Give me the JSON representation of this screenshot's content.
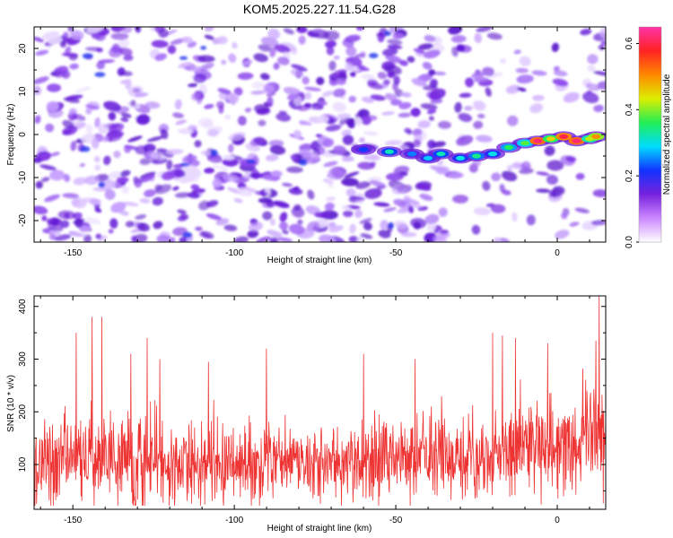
{
  "title": "KOM5.2025.227.11.54.G28",
  "chart_data": [
    {
      "type": "heatmap",
      "name": "spectrogram",
      "xlabel": "Height of straight line (km)",
      "ylabel": "Frequency (Hz)",
      "xlim": [
        -162,
        15
      ],
      "ylim": [
        -25,
        25
      ],
      "x_ticks": [
        -150,
        -100,
        -50,
        0
      ],
      "x_tick_labels": [
        "-150",
        "-100",
        "-50",
        "0"
      ],
      "y_ticks": [
        -20,
        -10,
        0,
        10,
        20
      ],
      "y_tick_labels": [
        "-20",
        "-10",
        "0",
        "10",
        "20"
      ],
      "colorbar": {
        "label": "Normalized spectral amplitude",
        "range": [
          0,
          0.65
        ],
        "ticks": [
          0,
          0.2,
          0.4,
          0.6
        ],
        "tick_labels": [
          "0.0",
          "0.2",
          "0.4",
          "0.6"
        ],
        "colors": [
          "#ffffff",
          "#cc88ff",
          "#7722dd",
          "#1133ff",
          "#00ddff",
          "#22ee55",
          "#ddee00",
          "#ff8800",
          "#ff2222",
          "#ff33aa"
        ]
      },
      "signal_track": [
        {
          "x": -60,
          "freq": -3.5,
          "amp": 0.22
        },
        {
          "x": -52,
          "freq": -4.0,
          "amp": 0.32
        },
        {
          "x": -45,
          "freq": -4.5,
          "amp": 0.25
        },
        {
          "x": -40,
          "freq": -5.5,
          "amp": 0.28
        },
        {
          "x": -36,
          "freq": -4.5,
          "amp": 0.32
        },
        {
          "x": -30,
          "freq": -5.5,
          "amp": 0.3
        },
        {
          "x": -25,
          "freq": -5.0,
          "amp": 0.34
        },
        {
          "x": -20,
          "freq": -4.5,
          "amp": 0.3
        },
        {
          "x": -15,
          "freq": -3.0,
          "amp": 0.36
        },
        {
          "x": -10,
          "freq": -2.0,
          "amp": 0.38
        },
        {
          "x": -6,
          "freq": -1.5,
          "amp": 0.62
        },
        {
          "x": -2,
          "freq": -1.0,
          "amp": 0.45
        },
        {
          "x": 2,
          "freq": -0.5,
          "amp": 0.6
        },
        {
          "x": 6,
          "freq": -1.5,
          "amp": 0.62
        },
        {
          "x": 10,
          "freq": -1.0,
          "amp": 0.42
        },
        {
          "x": 12,
          "freq": -0.5,
          "amp": 0.5
        }
      ]
    },
    {
      "type": "line",
      "name": "snr",
      "xlabel": "Height of straight line (km)",
      "ylabel": "SNR (10 * v/v)",
      "color": "#ee3333",
      "xlim": [
        -162,
        15
      ],
      "ylim": [
        15,
        420
      ],
      "x_ticks": [
        -150,
        -100,
        -50,
        0
      ],
      "x_tick_labels": [
        "-150",
        "-100",
        "-50",
        "0"
      ],
      "y_ticks": [
        100,
        200,
        300,
        400
      ],
      "y_tick_labels": [
        "100",
        "200",
        "300",
        "400"
      ],
      "trend": {
        "x": [
          -162,
          -140,
          -120,
          -100,
          -80,
          -60,
          -40,
          -20,
          0,
          15
        ],
        "mean": [
          105,
          110,
          105,
          100,
          100,
          108,
          112,
          120,
          135,
          145
        ],
        "spread": [
          60,
          70,
          65,
          60,
          55,
          60,
          65,
          70,
          75,
          80
        ]
      },
      "peaks": [
        {
          "x": -149,
          "y": 350
        },
        {
          "x": -144,
          "y": 380
        },
        {
          "x": -141,
          "y": 380
        },
        {
          "x": -132,
          "y": 310
        },
        {
          "x": -127,
          "y": 340
        },
        {
          "x": -123,
          "y": 300
        },
        {
          "x": -108,
          "y": 295
        },
        {
          "x": -90,
          "y": 320
        },
        {
          "x": -60,
          "y": 310
        },
        {
          "x": -44,
          "y": 300
        },
        {
          "x": -20,
          "y": 350
        },
        {
          "x": -17,
          "y": 345
        },
        {
          "x": -13,
          "y": 340
        },
        {
          "x": -3,
          "y": 330
        },
        {
          "x": 12,
          "y": 335
        },
        {
          "x": 13,
          "y": 420
        }
      ]
    }
  ]
}
